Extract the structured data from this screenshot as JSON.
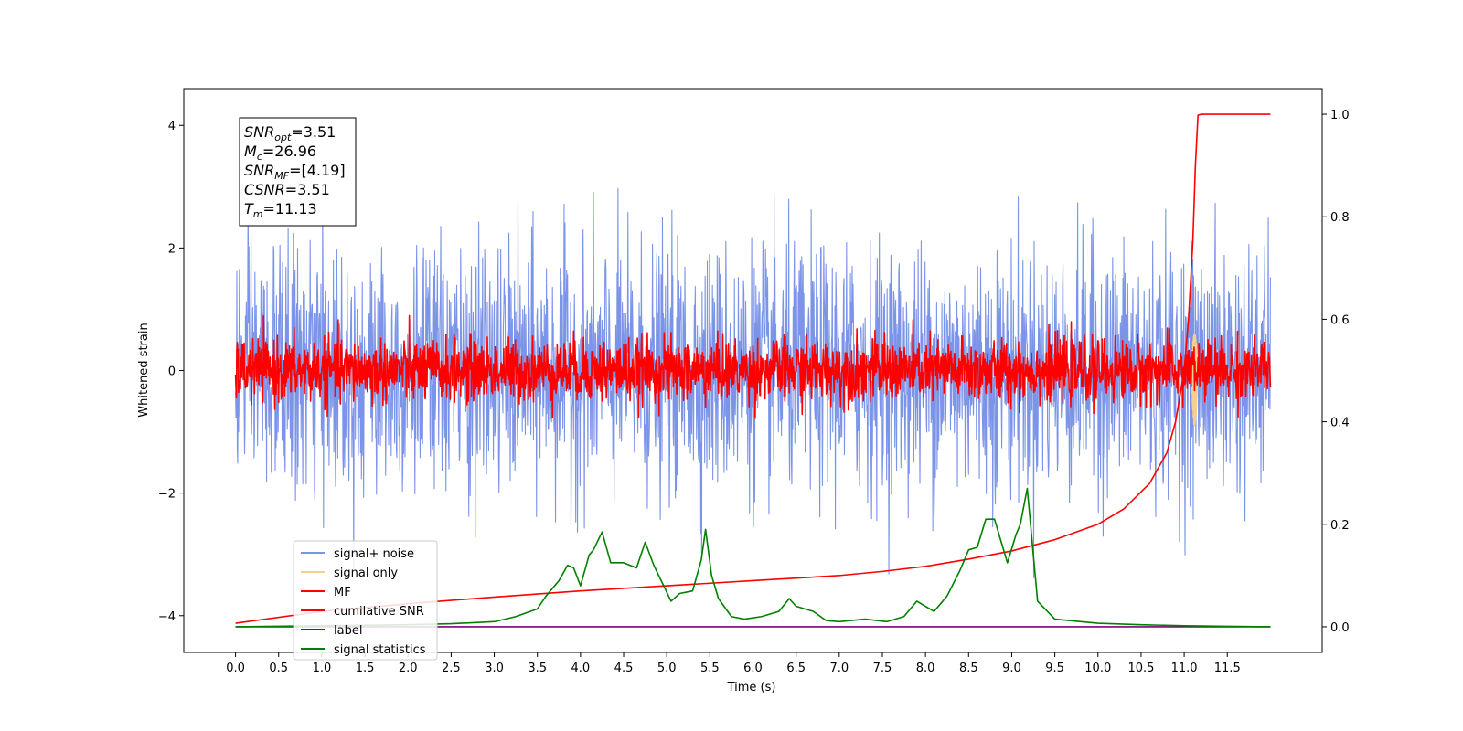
{
  "chart_data": {
    "type": "line",
    "xlabel": "Time (s)",
    "ylabel_left": "Whitened strain",
    "xlim": [
      -0.6,
      12.6
    ],
    "ylim_left": [
      -4.6,
      4.6
    ],
    "ylim_right": [
      -0.05,
      1.05
    ],
    "x_ticks": [
      0.0,
      0.5,
      1.0,
      1.5,
      2.0,
      2.5,
      3.0,
      3.5,
      4.0,
      4.5,
      5.0,
      5.5,
      6.0,
      6.5,
      7.0,
      7.5,
      8.0,
      8.5,
      9.0,
      9.5,
      10.0,
      10.5,
      11.0,
      11.5
    ],
    "x_tick_labels": [
      "0.0",
      "0.5",
      "1.0",
      "1.5",
      "2.0",
      "2.5",
      "3.0",
      "3.5",
      "4.0",
      "4.5",
      "5.0",
      "5.5",
      "6.0",
      "6.5",
      "7.0",
      "7.5",
      "8.0",
      "8.5",
      "9.0",
      "9.5",
      "10.0",
      "10.5",
      "11.0",
      "11.5"
    ],
    "y_left_ticks": [
      -4,
      -2,
      0,
      2,
      4
    ],
    "y_left_tick_labels": [
      "−4",
      "−2",
      "0",
      "2",
      "4"
    ],
    "y_right_ticks": [
      0.0,
      0.2,
      0.4,
      0.6,
      0.8,
      1.0
    ],
    "y_right_tick_labels": [
      "0.0",
      "0.2",
      "0.4",
      "0.6",
      "0.8",
      "1.0"
    ],
    "legend_position": "lower-left",
    "series": [
      {
        "name": "signal+ noise",
        "color": "#7b94e8",
        "axis": "left",
        "kind": "noise",
        "amplitude_std": 1.0,
        "x_range": [
          0.0,
          12.0
        ]
      },
      {
        "name": "signal only",
        "color": "#f5d08a",
        "axis": "left",
        "kind": "chirp",
        "x_range": [
          11.08,
          11.16
        ],
        "y_range": [
          -0.9,
          0.6
        ]
      },
      {
        "name": "MF",
        "color": "#ff0000",
        "axis": "left",
        "kind": "noise",
        "amplitude_std": 0.25,
        "x_range": [
          0.0,
          12.0
        ]
      },
      {
        "name": "cumilative SNR",
        "color": "#ff0000",
        "axis": "right",
        "x": [
          0.0,
          1.0,
          2.0,
          3.0,
          4.0,
          5.0,
          6.0,
          7.0,
          7.5,
          8.0,
          8.5,
          9.0,
          9.5,
          10.0,
          10.3,
          10.6,
          10.8,
          10.9,
          11.0,
          11.05,
          11.1,
          11.13,
          11.16,
          11.2,
          12.0
        ],
        "y": [
          0.007,
          0.03,
          0.045,
          0.058,
          0.07,
          0.08,
          0.09,
          0.1,
          0.108,
          0.118,
          0.132,
          0.148,
          0.17,
          0.2,
          0.23,
          0.28,
          0.34,
          0.4,
          0.5,
          0.6,
          0.75,
          0.9,
          0.998,
          1.0,
          1.0
        ]
      },
      {
        "name": "label",
        "color": "#800080",
        "axis": "right",
        "x": [
          0.0,
          12.0
        ],
        "y": [
          0.0,
          0.0
        ]
      },
      {
        "name": "signal statistics",
        "color": "#008000",
        "axis": "right",
        "x": [
          0.0,
          1.0,
          2.0,
          2.5,
          3.0,
          3.25,
          3.5,
          3.6,
          3.75,
          3.85,
          3.92,
          4.0,
          4.1,
          4.15,
          4.25,
          4.35,
          4.5,
          4.65,
          4.75,
          4.85,
          4.95,
          5.05,
          5.15,
          5.3,
          5.4,
          5.45,
          5.52,
          5.6,
          5.75,
          5.9,
          6.1,
          6.3,
          6.42,
          6.5,
          6.7,
          6.85,
          7.0,
          7.3,
          7.55,
          7.75,
          7.9,
          8.0,
          8.1,
          8.25,
          8.4,
          8.5,
          8.6,
          8.7,
          8.8,
          8.95,
          9.05,
          9.1,
          9.18,
          9.3,
          9.5,
          9.8,
          10.0,
          10.5,
          11.0,
          11.5,
          12.0
        ],
        "y": [
          0.0,
          0.002,
          0.004,
          0.006,
          0.01,
          0.02,
          0.035,
          0.06,
          0.09,
          0.12,
          0.115,
          0.08,
          0.14,
          0.15,
          0.185,
          0.125,
          0.125,
          0.115,
          0.165,
          0.12,
          0.085,
          0.05,
          0.065,
          0.07,
          0.13,
          0.19,
          0.1,
          0.055,
          0.02,
          0.015,
          0.02,
          0.03,
          0.055,
          0.04,
          0.03,
          0.012,
          0.01,
          0.015,
          0.01,
          0.02,
          0.05,
          0.04,
          0.03,
          0.06,
          0.11,
          0.15,
          0.155,
          0.21,
          0.21,
          0.125,
          0.18,
          0.2,
          0.27,
          0.05,
          0.015,
          0.01,
          0.007,
          0.004,
          0.002,
          0.001,
          0.0
        ]
      }
    ],
    "annotation": {
      "lines": [
        {
          "base": "SNR",
          "sub": "opt",
          "value": "=3.51"
        },
        {
          "base": "M",
          "sub": "c",
          "value": "=26.96"
        },
        {
          "base": "SNR",
          "sub": "MF",
          "value": "=[4.19]"
        },
        {
          "base": "CSNR",
          "sub": "",
          "value": "=3.51"
        },
        {
          "base": "T",
          "sub": "m",
          "value": "=11.13"
        }
      ]
    }
  }
}
